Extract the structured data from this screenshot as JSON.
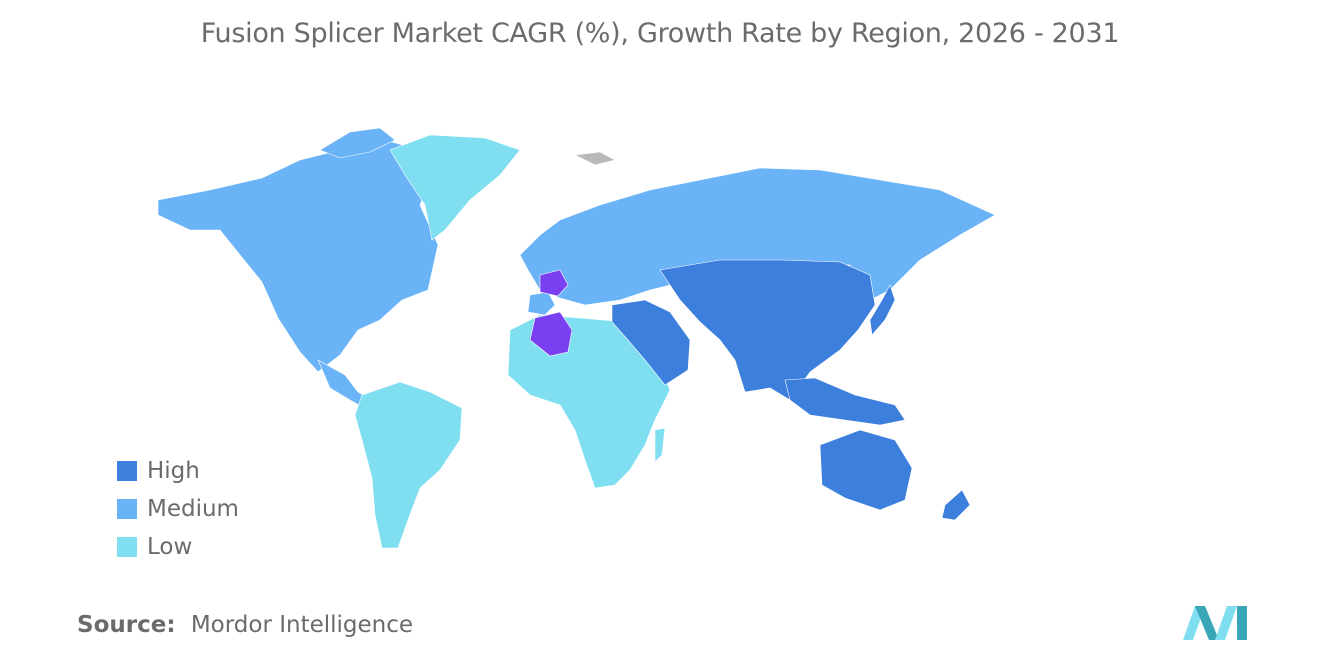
{
  "title": "Fusion Splicer Market CAGR (%), Growth Rate by Region, 2026 - 2031",
  "legend": [
    {
      "label": "High",
      "color": "#3d7fdc"
    },
    {
      "label": "Medium",
      "color": "#6ab3f7"
    },
    {
      "label": "Low",
      "color": "#7fdff0"
    }
  ],
  "highlight_color": "#7b3ff2",
  "no_data_color": "#b9b9b9",
  "source": {
    "label": "Source:",
    "value": "Mordor Intelligence"
  },
  "logo_icon": "mordor-intelligence-logo",
  "map_regions": [
    {
      "name": "north-america-and-europe-and-russia",
      "class": "Medium"
    },
    {
      "name": "greenland",
      "class": "Low"
    },
    {
      "name": "latin-america",
      "class": "Low"
    },
    {
      "name": "africa",
      "class": "Low"
    },
    {
      "name": "asia-pacific",
      "class": "High"
    },
    {
      "name": "middle-east",
      "class": "High"
    },
    {
      "name": "france",
      "class": "highlight"
    },
    {
      "name": "algeria",
      "class": "highlight"
    }
  ]
}
